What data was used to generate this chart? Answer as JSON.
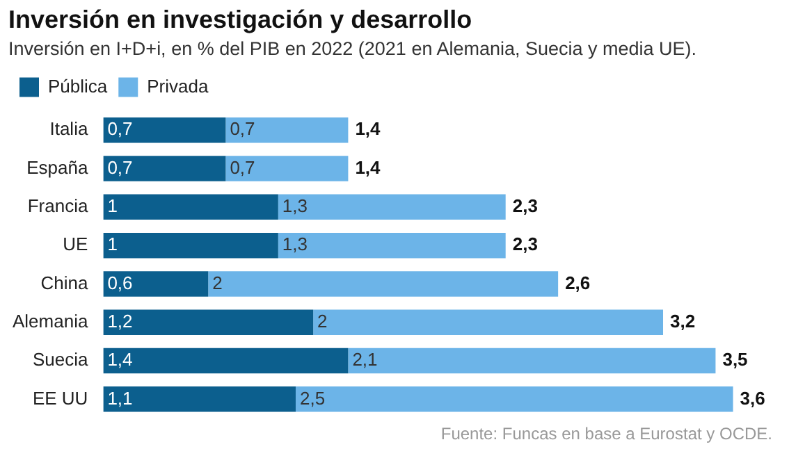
{
  "chart_data": {
    "type": "bar",
    "orientation": "horizontal",
    "stacked": true,
    "title": "Inversión en investigación y desarrollo",
    "subtitle": "Inversión en I+D+i, en % del PIB en 2022 (2021 en Alemania, Suecia y media UE).",
    "categories": [
      "Italia",
      "España",
      "Francia",
      "UE",
      "China",
      "Alemania",
      "Suecia",
      "EE UU"
    ],
    "series": [
      {
        "name": "Pública",
        "color": "#0c5f8e",
        "values": [
          0.7,
          0.7,
          1,
          1,
          0.6,
          1.2,
          1.4,
          1.1
        ],
        "value_labels": [
          "0,7",
          "0,7",
          "1",
          "1",
          "0,6",
          "1,2",
          "1,4",
          "1,1"
        ]
      },
      {
        "name": "Privada",
        "color": "#6cb4e8",
        "values": [
          0.7,
          0.7,
          1.3,
          1.3,
          2,
          2,
          2.1,
          2.5
        ],
        "value_labels": [
          "0,7",
          "0,7",
          "1,3",
          "1,3",
          "2",
          "2",
          "2,1",
          "2,5"
        ]
      }
    ],
    "totals": [
      "1,4",
      "1,4",
      "2,3",
      "2,3",
      "2,6",
      "3,2",
      "3,5",
      "3,6"
    ],
    "legend": "top left",
    "tick_labels": "y",
    "annotations": [
      "Fuente: Funcas en base a Eurostat y OCDE."
    ]
  }
}
